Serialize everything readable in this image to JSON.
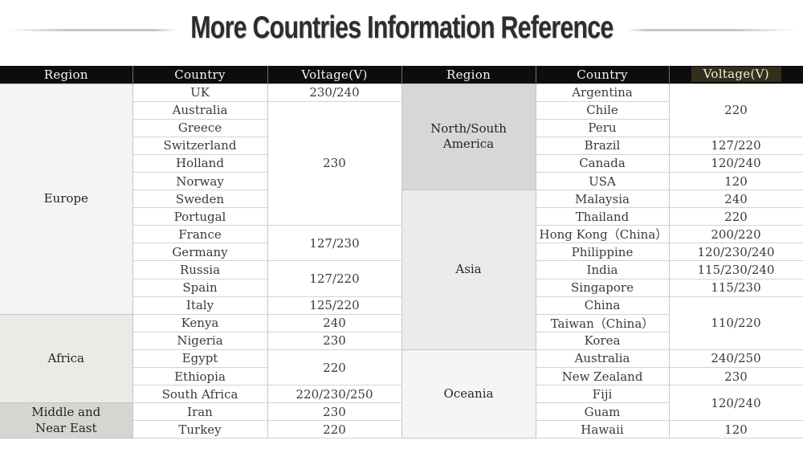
{
  "title": "More Countries Information Reference",
  "colors": {
    "header_bg": "#0d0d0d",
    "header_text": "#f7f7f7",
    "header_highlight_bg": "#32301b",
    "header_highlight_text": "#f3f1dd",
    "border": "#c6c6c6",
    "region_europe_bg": "#f5f4f2",
    "region_africa_bg": "#ebeae7",
    "region_middle_east_bg": "#d6d5d2",
    "region_ns_america_bg": "#d8d7d5",
    "region_asia_bg": "#ebebeb",
    "region_oceania_bg": "#f5f5f4"
  },
  "table": {
    "headers": [
      "Region",
      "Country",
      "Voltage(V)",
      "Region",
      "Country",
      "Voltage(V)"
    ],
    "rows_left": [
      {
        "region": "Europe",
        "rspan": 13,
        "rbg": "#f5f4f2",
        "country": "UK",
        "voltage": "230/240",
        "vspan": 1
      },
      {
        "country": "Australia",
        "voltage": "230",
        "vspan": 7
      },
      {
        "country": "Greece"
      },
      {
        "country": "Switzerland"
      },
      {
        "country": "Holland"
      },
      {
        "country": "Norway"
      },
      {
        "country": "Sweden"
      },
      {
        "country": "Portugal"
      },
      {
        "country": "France",
        "voltage": "127/230",
        "vspan": 2
      },
      {
        "country": "Germany"
      },
      {
        "country": "Russia",
        "voltage": "127/220",
        "vspan": 2
      },
      {
        "country": "Spain"
      },
      {
        "country": "Italy",
        "voltage": "125/220",
        "vspan": 1
      },
      {
        "region": "Africa",
        "rspan": 5,
        "rbg": "#ebeae7",
        "country": "Kenya",
        "voltage": "240",
        "vspan": 1
      },
      {
        "country": "Nigeria",
        "voltage": "230",
        "vspan": 1
      },
      {
        "country": "Egypt",
        "voltage": "220",
        "vspan": 2
      },
      {
        "country": "Ethiopia"
      },
      {
        "country": "South Africa",
        "voltage": "220/230/250",
        "vspan": 1
      },
      {
        "region": "Middle and\nNear East",
        "rspan": 2,
        "rbg": "#d6d5d2",
        "country": "Iran",
        "voltage": "230",
        "vspan": 1
      },
      {
        "country": "Turkey",
        "voltage": "220",
        "vspan": 1
      }
    ],
    "rows_right": [
      {
        "region": "North/South\nAmerica",
        "rspan": 6,
        "rbg": "#d8d7d5",
        "country": "Argentina",
        "voltage": "220",
        "vspan": 3
      },
      {
        "country": "Chile"
      },
      {
        "country": "Peru"
      },
      {
        "country": "Brazil",
        "voltage": "127/220",
        "vspan": 1
      },
      {
        "country": "Canada",
        "voltage": "120/240",
        "vspan": 1
      },
      {
        "country": "USA",
        "voltage": "120",
        "vspan": 1
      },
      {
        "region": "Asia",
        "rspan": 9,
        "rbg": "#ebebeb",
        "country": "Malaysia",
        "voltage": "240",
        "vspan": 1
      },
      {
        "country": "Thailand",
        "voltage": "220",
        "vspan": 1
      },
      {
        "country": "Hong Kong（China）",
        "voltage": "200/220",
        "vspan": 1
      },
      {
        "country": "Philippine",
        "voltage": "120/230/240",
        "vspan": 1
      },
      {
        "country": "India",
        "voltage": "115/230/240",
        "vspan": 1
      },
      {
        "country": "Singapore",
        "voltage": "115/230",
        "vspan": 1
      },
      {
        "country": "China",
        "voltage": "110/220",
        "vspan": 3
      },
      {
        "country": "Taiwan（China）"
      },
      {
        "country": "Korea"
      },
      {
        "region": "Oceania",
        "rspan": 5,
        "rbg": "#f5f5f4",
        "country": "Australia",
        "voltage": "240/250",
        "vspan": 1
      },
      {
        "country": "New Zealand",
        "voltage": "230",
        "vspan": 1
      },
      {
        "country": "Fiji",
        "voltage": "120/240",
        "vspan": 2
      },
      {
        "country": "Guam"
      },
      {
        "country": "Hawaii",
        "voltage": "120",
        "vspan": 1
      }
    ]
  }
}
